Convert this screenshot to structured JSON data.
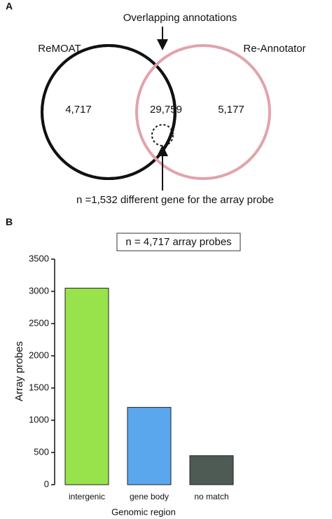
{
  "chart_data": [
    {
      "type": "venn",
      "panel": "A",
      "sets": [
        "ReMOAT",
        "Re-Annotator"
      ],
      "values": [
        4717,
        29759,
        5177
      ],
      "value_labels": [
        "4,717",
        "29,759",
        "5,177"
      ],
      "colors": [
        "#111111",
        "#e2a3ab"
      ],
      "annotations": [
        "Overlapping annotations",
        "n =1,532 different gene for the array probe"
      ]
    },
    {
      "type": "bar",
      "panel": "B",
      "annotation": "n = 4,717 array probes",
      "categories": [
        "intergenic",
        "gene body",
        "no match"
      ],
      "values": [
        3050,
        1200,
        450
      ],
      "colors": [
        "#98e24c",
        "#5ba7ee",
        "#4e5a54"
      ],
      "xlabel": "Genomic region",
      "ylabel": "Array probes",
      "ylim": [
        0,
        3500
      ],
      "yticks": [
        0,
        500,
        1000,
        1500,
        2000,
        2500,
        3000,
        3500
      ],
      "grid": false
    }
  ]
}
